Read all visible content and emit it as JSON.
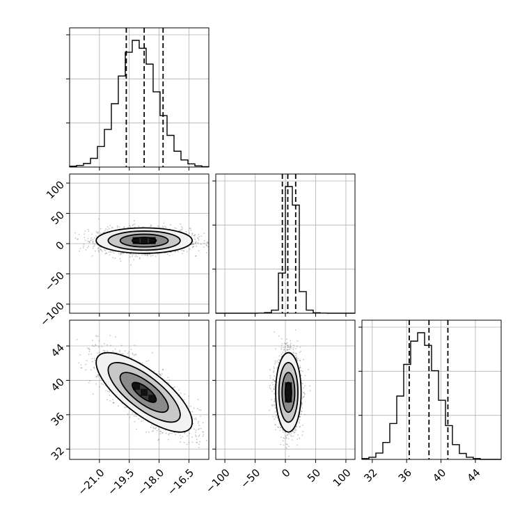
{
  "chart_data": {
    "type": "corner",
    "params": [
      {
        "id": "p0",
        "range": [
          -22.5,
          -15.5
        ],
        "mean": -18.75,
        "sd": 1.15,
        "q16": -19.65,
        "q50": -18.75,
        "q84": -17.8,
        "ticks": [
          -21.0,
          -19.5,
          -18.0,
          -16.5
        ],
        "tick_labels": [
          "−21.0",
          "−19.5",
          "−18.0",
          "−16.5"
        ]
      },
      {
        "id": "p1",
        "range": [
          -115,
          115
        ],
        "mean": 5,
        "sd": 10,
        "q16": -5,
        "q50": 4,
        "q84": 17,
        "ticks": [
          -100,
          -50,
          0,
          50,
          100
        ],
        "tick_labels": [
          "−100",
          "−50",
          "0",
          "50",
          "100"
        ]
      },
      {
        "id": "p2",
        "range": [
          30.8,
          47.0
        ],
        "mean": 38.6,
        "sd": 2.2,
        "q16": 36.3,
        "q50": 38.6,
        "q84": 40.8,
        "ticks": [
          32,
          36,
          40,
          44
        ],
        "tick_labels": [
          "32",
          "36",
          "40",
          "44"
        ]
      }
    ],
    "diag_hist": [
      {
        "param": "p0",
        "edges_from": -22.5,
        "bin_width": 0.35,
        "counts": [
          2,
          4,
          9,
          22,
          52,
          95,
          160,
          230,
          290,
          320,
          300,
          260,
          190,
          130,
          80,
          40,
          18,
          8,
          3,
          1
        ]
      },
      {
        "param": "p1",
        "edges_from": -115,
        "bin_width": 11.5,
        "counts": [
          0,
          0,
          0,
          0,
          0,
          0,
          1,
          4,
          20,
          260,
          820,
          700,
          140,
          20,
          3,
          1,
          0,
          0,
          0,
          0
        ]
      },
      {
        "param": "p2",
        "edges_from": 30.8,
        "bin_width": 0.81,
        "counts": [
          2,
          5,
          15,
          40,
          85,
          150,
          225,
          280,
          300,
          270,
          210,
          140,
          80,
          35,
          14,
          5,
          2,
          0,
          0,
          0
        ]
      }
    ],
    "pairs": [
      {
        "x": "p0",
        "y": "p1",
        "correlation": 0.0
      },
      {
        "x": "p0",
        "y": "p2",
        "correlation": -0.75
      },
      {
        "x": "p1",
        "y": "p2",
        "correlation": 0.0
      }
    ],
    "contour_levels_sigma": [
      0.5,
      1.0,
      1.5,
      2.0
    ],
    "grid": true,
    "colors": {
      "lines": "#000000",
      "points": "#555555",
      "grid": "#b0b0b0"
    }
  }
}
